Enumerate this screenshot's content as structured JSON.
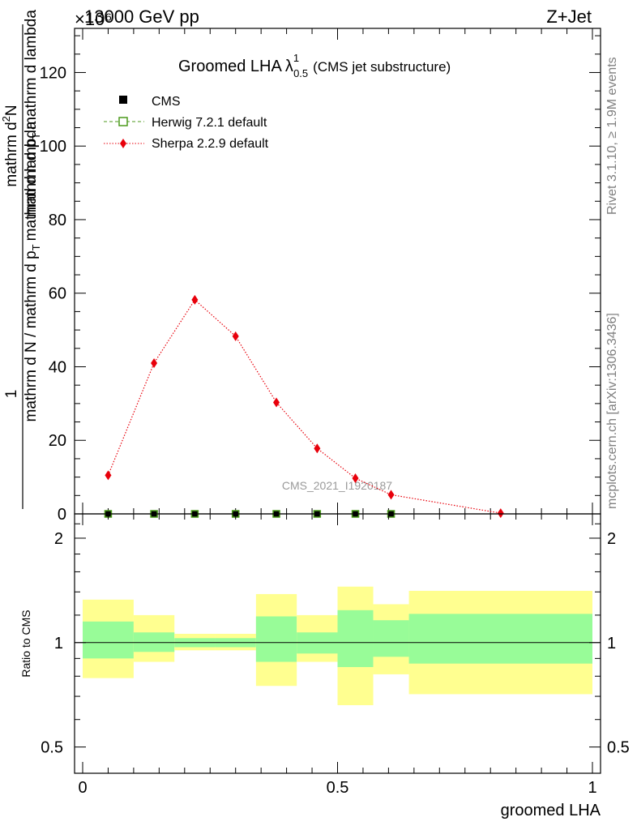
{
  "header": {
    "energy_label": "13000 GeV pp",
    "process_label": "Z+Jet",
    "multiplier_label": "×10⁶"
  },
  "side_labels": {
    "rivet": "Rivet 3.1.10, ≥ 1.9M events",
    "mcplots": "mcplots.cern.ch [arXiv:1306.3436]"
  },
  "chart_data": [
    {
      "type": "line",
      "title_main": "Groomed LHA",
      "title_lambda": "λ",
      "title_sup": "1",
      "title_sub": "0.5",
      "title_extra": "(CMS jet substructure)",
      "ylabel_top": "1",
      "ylabel_bottom": "mathrm d N / mathrm d p_T mathrm d lambda",
      "ylabel_numer": "mathrm d^2N",
      "ylabel_denom": "mathrm d p_T mathrm d lambda",
      "ylabel_denom_main": "mathrm d p",
      "ylabel_denom_sub": "T",
      "ylabel_denom_tail": "mathrm d lambda",
      "ylabel_lhs_main": "mathrm d N / mathrm d p",
      "ylabel_lhs_sub": "T",
      "ylabel_lhs_tail": "mathrm d lambda",
      "ylabel_numer_text": "mathrm d",
      "ylabel_numer_sup": "2",
      "ylabel_numer_tail": "N",
      "xlim": [
        0,
        1
      ],
      "ylim": [
        0,
        132
      ],
      "yticks": [
        0,
        20,
        40,
        60,
        80,
        100,
        120
      ],
      "analysis_label": "CMS_2021_I1920187",
      "legend": [
        {
          "name": "CMS",
          "color": "#000000"
        },
        {
          "name": "Herwig 7.2.1 default",
          "color": "#4c9a1c"
        },
        {
          "name": "Sherpa 2.2.9 default",
          "color": "#e8000b"
        }
      ],
      "series": [
        {
          "name": "CMS",
          "x": [
            0.05,
            0.14,
            0.22,
            0.3,
            0.38,
            0.46,
            0.535,
            0.605
          ],
          "values": [
            0,
            0,
            0,
            0,
            0,
            0,
            0,
            0
          ]
        },
        {
          "name": "Herwig 7.2.1 default",
          "x": [
            0.05,
            0.14,
            0.22,
            0.3,
            0.38,
            0.46,
            0.535,
            0.605
          ],
          "values": [
            0,
            0,
            0,
            0,
            0,
            0,
            0,
            0
          ]
        },
        {
          "name": "Sherpa 2.2.9 default",
          "x": [
            0.05,
            0.14,
            0.22,
            0.3,
            0.38,
            0.46,
            0.535,
            0.605,
            0.82
          ],
          "values": [
            10.5,
            41.0,
            58.2,
            48.3,
            30.3,
            17.8,
            9.7,
            5.2,
            0.2
          ]
        }
      ]
    },
    {
      "type": "area",
      "ylabel": "Ratio to CMS",
      "xlabel": "groomed LHA",
      "xlim": [
        0,
        1
      ],
      "ylim": [
        0.42,
        2.35
      ],
      "log_scale_y": true,
      "yticks": [
        0.5,
        1,
        2
      ],
      "ytick_labels": [
        "0.5",
        "1",
        "2"
      ],
      "xticks": [
        0,
        0.5,
        1
      ],
      "xtick_labels": [
        "0",
        "0.5",
        "1"
      ],
      "bins": [
        {
          "lo": 0.0,
          "hi": 0.1,
          "green": [
            0.9,
            1.15
          ],
          "yellow": [
            0.79,
            1.33
          ]
        },
        {
          "lo": 0.1,
          "hi": 0.18,
          "green": [
            0.94,
            1.07
          ],
          "yellow": [
            0.88,
            1.2
          ]
        },
        {
          "lo": 0.18,
          "hi": 0.26,
          "green": [
            0.97,
            1.03
          ],
          "yellow": [
            0.95,
            1.06
          ]
        },
        {
          "lo": 0.26,
          "hi": 0.34,
          "green": [
            0.97,
            1.03
          ],
          "yellow": [
            0.95,
            1.06
          ]
        },
        {
          "lo": 0.34,
          "hi": 0.42,
          "green": [
            0.88,
            1.19
          ],
          "yellow": [
            0.75,
            1.38
          ]
        },
        {
          "lo": 0.42,
          "hi": 0.5,
          "green": [
            0.93,
            1.07
          ],
          "yellow": [
            0.88,
            1.2
          ]
        },
        {
          "lo": 0.5,
          "hi": 0.57,
          "green": [
            0.85,
            1.24
          ],
          "yellow": [
            0.66,
            1.45
          ]
        },
        {
          "lo": 0.57,
          "hi": 0.64,
          "green": [
            0.91,
            1.16
          ],
          "yellow": [
            0.81,
            1.29
          ]
        },
        {
          "lo": 0.64,
          "hi": 1.0,
          "green": [
            0.87,
            1.21
          ],
          "yellow": [
            0.71,
            1.41
          ]
        }
      ]
    }
  ]
}
